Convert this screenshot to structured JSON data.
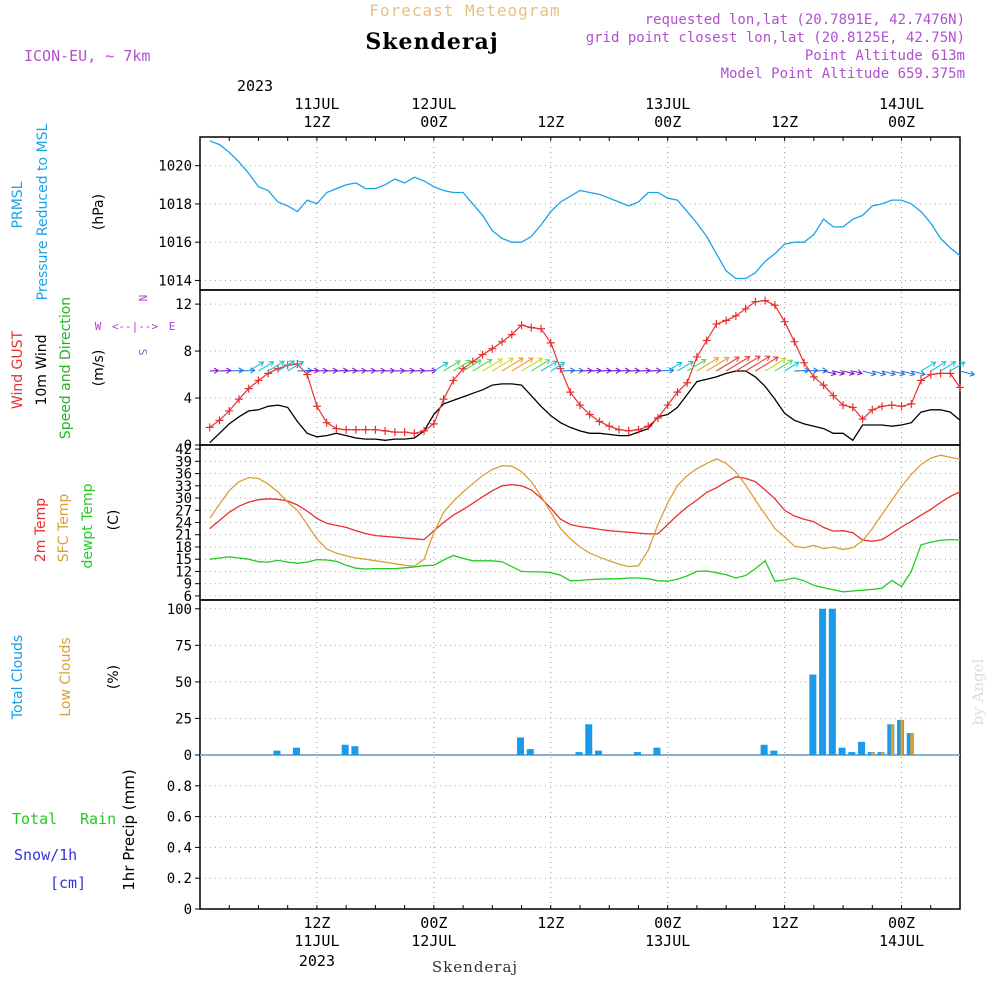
{
  "header": {
    "top_title": "Forecast Meteogram",
    "station": "Skenderaj",
    "model": "ICON-EU, ~ 7km",
    "requested": "requested lon,lat (20.7891E, 42.7476N)",
    "grid_point": "grid point closest lon,lat (20.8125E, 42.75N)",
    "point_altitude": "Point Altitude 613m",
    "model_altitude": "Model Point Altitude 659.375m"
  },
  "footer": {
    "station": "Skenderaj",
    "watermark": "by Angel"
  },
  "colors": {
    "prmsl": "#1aa3e8",
    "gust": "#e83030",
    "wind10": "#000000",
    "dir": "#22b522",
    "t2m": "#e83030",
    "sfc": "#d9a035",
    "dew": "#22cc22",
    "total_clouds": "#1a9ae8",
    "low_clouds": "#d9a035",
    "rain": "#22cc22",
    "snow": "#3333dd",
    "compass": "#b040d0",
    "header_purple": "#b050d0",
    "header_orange": "#e8c080"
  },
  "time_axis": {
    "top_labels": [
      {
        "h": 12,
        "l1": "11JUL",
        "l2": "12Z"
      },
      {
        "h": 24,
        "l1": "12JUL",
        "l2": "00Z"
      },
      {
        "h": 36,
        "l1": "",
        "l2": "12Z"
      },
      {
        "h": 48,
        "l1": "13JUL",
        "l2": "00Z"
      },
      {
        "h": 60,
        "l1": "",
        "l2": "12Z"
      },
      {
        "h": 72,
        "l1": "14JUL",
        "l2": "00Z"
      }
    ],
    "year": "2023",
    "bottom_labels": [
      {
        "h": 12,
        "l1": "12Z",
        "l2": "11JUL",
        "l3": "2023"
      },
      {
        "h": 24,
        "l1": "00Z",
        "l2": "12JUL",
        "l3": ""
      },
      {
        "h": 36,
        "l1": "12Z",
        "l2": "",
        "l3": ""
      },
      {
        "h": 48,
        "l1": "00Z",
        "l2": "13JUL",
        "l3": ""
      },
      {
        "h": 60,
        "l1": "12Z",
        "l2": "",
        "l3": ""
      },
      {
        "h": 72,
        "l1": "00Z",
        "l2": "14JUL",
        "l3": ""
      }
    ]
  },
  "panel_labels": {
    "pressure": {
      "l1": "PRMSL",
      "l2": "Pressure Reduced to MSL",
      "unit": "(hPa)"
    },
    "wind": {
      "gust": "Wind GUST",
      "w10": "10m Wind",
      "dir": "Speed and Direction",
      "unit": "(m/s)",
      "compass_w": "W",
      "compass_e": "E",
      "compass_n": "N",
      "compass_s": "S",
      "compass_h": "<--|-->"
    },
    "temp": {
      "t2m": "2m Temp",
      "sfc": "SFC Temp",
      "dew": "dewpt Temp",
      "unit": "(C)"
    },
    "clouds": {
      "total": "Total Clouds",
      "low": "Low Clouds",
      "unit": "(%)"
    },
    "precip": {
      "total": "Total",
      "rain": "Rain",
      "snow": "Snow/1h",
      "snow_unit": "[cm]",
      "axis": "1hr Precip (mm)"
    }
  },
  "chart_data": [
    {
      "type": "line",
      "title": "PRMSL Pressure Reduced to MSL",
      "ylabel": "(hPa)",
      "ylim": [
        1013.5,
        1021.5
      ],
      "yticks": [
        "1014",
        "1016",
        "1018",
        "1020"
      ],
      "x": [
        1,
        2,
        3,
        4,
        5,
        6,
        7,
        8,
        9,
        10,
        11,
        12,
        13,
        14,
        15,
        16,
        17,
        18,
        19,
        20,
        21,
        22,
        23,
        24,
        25,
        26,
        27,
        28,
        29,
        30,
        31,
        32,
        33,
        34,
        35,
        36,
        37,
        38,
        39,
        40,
        41,
        42,
        43,
        44,
        45,
        46,
        47,
        48,
        49,
        50,
        51,
        52,
        53,
        54,
        55,
        56,
        57,
        58,
        59,
        60,
        61,
        62,
        63,
        64,
        65,
        66,
        67,
        68,
        69,
        70,
        71,
        72,
        73,
        74,
        75,
        76,
        77,
        78
      ],
      "values": [
        1021.3,
        1021.1,
        1020.7,
        1020.2,
        1019.6,
        1018.9,
        1018.7,
        1018.1,
        1017.9,
        1017.6,
        1018.2,
        1018.0,
        1018.6,
        1018.8,
        1019.0,
        1019.1,
        1018.8,
        1018.8,
        1019.0,
        1019.3,
        1019.1,
        1019.4,
        1019.2,
        1018.9,
        1018.7,
        1018.6,
        1018.6,
        1018.0,
        1017.4,
        1016.6,
        1016.2,
        1016.0,
        1016.0,
        1016.3,
        1016.9,
        1017.6,
        1018.1,
        1018.4,
        1018.7,
        1018.6,
        1018.5,
        1018.3,
        1018.1,
        1017.9,
        1018.1,
        1018.6,
        1018.6,
        1018.3,
        1018.2,
        1017.6,
        1017.0,
        1016.3,
        1015.4,
        1014.5,
        1014.1,
        1014.1,
        1014.4,
        1015.0,
        1015.4,
        1015.9,
        1016.0,
        1016.0,
        1016.4,
        1017.2,
        1016.8,
        1016.8,
        1017.2,
        1017.4,
        1017.9,
        1018.0,
        1018.2,
        1018.2,
        1018.0,
        1017.6,
        1017.0,
        1016.2,
        1015.7,
        1015.3
      ]
    },
    {
      "type": "line",
      "title": "Wind GUST / 10m Wind",
      "ylabel": "(m/s)",
      "ylim": [
        0,
        13.2
      ],
      "yticks": [
        "0",
        "4",
        "8",
        "12"
      ],
      "x": [
        1,
        2,
        3,
        4,
        5,
        6,
        7,
        8,
        9,
        10,
        11,
        12,
        13,
        14,
        15,
        16,
        17,
        18,
        19,
        20,
        21,
        22,
        23,
        24,
        25,
        26,
        27,
        28,
        29,
        30,
        31,
        32,
        33,
        34,
        35,
        36,
        37,
        38,
        39,
        40,
        41,
        42,
        43,
        44,
        45,
        46,
        47,
        48,
        49,
        50,
        51,
        52,
        53,
        54,
        55,
        56,
        57,
        58,
        59,
        60,
        61,
        62,
        63,
        64,
        65,
        66,
        67,
        68,
        69,
        70,
        71,
        72,
        73,
        74,
        75,
        76,
        77,
        78
      ],
      "series": [
        {
          "name": "Wind GUST",
          "values": [
            1.5,
            2.1,
            2.9,
            3.9,
            4.8,
            5.5,
            6.1,
            6.5,
            6.8,
            6.9,
            6.0,
            3.3,
            1.9,
            1.4,
            1.3,
            1.3,
            1.3,
            1.3,
            1.2,
            1.1,
            1.1,
            1.0,
            1.2,
            1.8,
            3.9,
            5.5,
            6.5,
            7.1,
            7.7,
            8.2,
            8.8,
            9.4,
            10.2,
            10.0,
            9.9,
            8.7,
            6.5,
            4.5,
            3.4,
            2.6,
            2.0,
            1.6,
            1.3,
            1.2,
            1.3,
            1.6,
            2.3,
            3.4,
            4.5,
            5.3,
            7.5,
            8.9,
            10.3,
            10.6,
            11.0,
            11.6,
            12.2,
            12.3,
            11.9,
            10.5,
            8.8,
            7.0,
            5.8,
            5.1,
            4.2,
            3.4,
            3.2,
            2.2,
            3.0,
            3.3,
            3.4,
            3.3,
            3.5,
            5.5,
            6.0,
            6.1,
            6.1,
            4.9
          ]
        },
        {
          "name": "10m Wind",
          "values": [
            0.2,
            1.0,
            1.8,
            2.4,
            2.9,
            3.0,
            3.3,
            3.4,
            3.2,
            2.0,
            1.0,
            0.7,
            0.8,
            1.0,
            0.8,
            0.6,
            0.5,
            0.5,
            0.4,
            0.5,
            0.5,
            0.6,
            1.2,
            2.6,
            3.5,
            3.8,
            4.1,
            4.4,
            4.7,
            5.1,
            5.2,
            5.2,
            5.1,
            4.2,
            3.3,
            2.5,
            1.9,
            1.5,
            1.2,
            1.0,
            1.0,
            0.9,
            0.8,
            0.8,
            1.1,
            1.4,
            2.4,
            2.6,
            3.2,
            4.3,
            5.4,
            5.6,
            5.8,
            6.1,
            6.3,
            6.3,
            5.8,
            5.0,
            3.9,
            2.7,
            2.1,
            1.8,
            1.6,
            1.4,
            1.0,
            1.0,
            0.4,
            1.7,
            1.7,
            1.7,
            1.6,
            1.7,
            1.9,
            2.8,
            3.0,
            3.0,
            2.8,
            2.1
          ]
        }
      ],
      "direction_arrows": "per-hour wind direction arrows, colored by speed"
    },
    {
      "type": "line",
      "title": "2m Temp / SFC Temp / dewpt Temp",
      "ylabel": "(C)",
      "ylim": [
        5,
        43
      ],
      "yticks": [
        "6",
        "9",
        "12",
        "15",
        "18",
        "21",
        "24",
        "27",
        "30",
        "33",
        "36",
        "39",
        "42"
      ],
      "x": [
        1,
        2,
        3,
        4,
        5,
        6,
        7,
        8,
        9,
        10,
        11,
        12,
        13,
        14,
        15,
        16,
        17,
        18,
        19,
        20,
        21,
        22,
        23,
        24,
        25,
        26,
        27,
        28,
        29,
        30,
        31,
        32,
        33,
        34,
        35,
        36,
        37,
        38,
        39,
        40,
        41,
        42,
        43,
        44,
        45,
        46,
        47,
        48,
        49,
        50,
        51,
        52,
        53,
        54,
        55,
        56,
        57,
        58,
        59,
        60,
        61,
        62,
        63,
        64,
        65,
        66,
        67,
        68,
        69,
        70,
        71,
        72,
        73,
        74,
        75,
        76,
        77,
        78
      ],
      "series": [
        {
          "name": "2m Temp",
          "values": [
            22.5,
            24.5,
            26.5,
            28.0,
            29.0,
            29.6,
            29.8,
            29.7,
            29.3,
            28.3,
            26.8,
            25.0,
            23.8,
            23.3,
            22.8,
            22.0,
            21.3,
            20.8,
            20.6,
            20.4,
            20.2,
            20.0,
            19.8,
            22.0,
            24.0,
            25.8,
            27.2,
            28.7,
            30.3,
            31.8,
            33.0,
            33.3,
            33.0,
            32.0,
            30.0,
            27.5,
            24.8,
            23.5,
            23.0,
            22.7,
            22.3,
            22.0,
            21.8,
            21.6,
            21.4,
            21.2,
            21.2,
            23.5,
            25.8,
            27.8,
            29.5,
            31.4,
            32.5,
            34.0,
            35.2,
            34.8,
            34.0,
            32.0,
            29.8,
            27.0,
            25.6,
            24.8,
            24.2,
            22.8,
            21.9,
            22.0,
            21.5,
            19.7,
            19.4,
            19.8,
            21.3,
            22.9,
            24.3,
            25.8,
            27.2,
            28.9,
            30.4,
            31.5
          ]
        },
        {
          "name": "SFC Temp",
          "values": [
            25.0,
            28.5,
            31.8,
            34.0,
            35.0,
            34.8,
            33.4,
            31.5,
            29.0,
            27.0,
            23.5,
            20.0,
            17.5,
            16.5,
            15.8,
            15.3,
            15.0,
            14.6,
            14.3,
            13.9,
            13.5,
            13.3,
            15.0,
            21.5,
            26.5,
            29.2,
            31.5,
            33.5,
            35.5,
            37.0,
            37.9,
            37.8,
            36.5,
            34.0,
            30.5,
            26.5,
            22.5,
            20.0,
            18.0,
            16.5,
            15.5,
            14.6,
            13.8,
            13.2,
            13.4,
            17.2,
            23.5,
            28.8,
            33.0,
            35.5,
            37.2,
            38.5,
            39.6,
            38.5,
            36.4,
            33.2,
            29.5,
            26.0,
            22.5,
            20.5,
            18.2,
            17.8,
            18.4,
            17.6,
            18.0,
            17.4,
            17.8,
            19.5,
            22.5,
            26.0,
            29.5,
            32.8,
            35.8,
            38.2,
            39.8,
            40.5,
            40.0,
            39.5
          ]
        },
        {
          "name": "dewpt Temp",
          "values": [
            15.0,
            15.3,
            15.6,
            15.3,
            15.0,
            14.4,
            14.3,
            14.7,
            14.3,
            14.0,
            14.3,
            14.9,
            14.8,
            14.5,
            13.5,
            12.8,
            12.6,
            12.7,
            12.7,
            12.7,
            12.9,
            13.1,
            13.4,
            13.5,
            14.8,
            15.9,
            15.2,
            14.6,
            14.6,
            14.6,
            14.4,
            13.2,
            12.0,
            11.9,
            11.9,
            11.7,
            11.1,
            9.7,
            9.8,
            10.0,
            10.1,
            10.2,
            10.2,
            10.4,
            10.4,
            10.2,
            9.7,
            9.6,
            10.1,
            10.9,
            12.0,
            12.1,
            11.7,
            11.2,
            10.4,
            11.0,
            12.7,
            14.6,
            9.6,
            9.9,
            10.4,
            9.7,
            8.6,
            8.0,
            7.5,
            7.0,
            7.2,
            7.4,
            7.6,
            7.9,
            9.8,
            8.3,
            12.0,
            18.5,
            19.2,
            19.6,
            19.8,
            19.7
          ]
        }
      ]
    },
    {
      "type": "bar",
      "title": "Total Clouds / Low Clouds",
      "ylabel": "(%)",
      "ylim": [
        0,
        106
      ],
      "yticks": [
        "0",
        "25",
        "50",
        "75",
        "100"
      ],
      "x": [
        1,
        2,
        3,
        4,
        5,
        6,
        7,
        8,
        9,
        10,
        11,
        12,
        13,
        14,
        15,
        16,
        17,
        18,
        19,
        20,
        21,
        22,
        23,
        24,
        25,
        26,
        27,
        28,
        29,
        30,
        31,
        32,
        33,
        34,
        35,
        36,
        37,
        38,
        39,
        40,
        41,
        42,
        43,
        44,
        45,
        46,
        47,
        48,
        49,
        50,
        51,
        52,
        53,
        54,
        55,
        56,
        57,
        58,
        59,
        60,
        61,
        62,
        63,
        64,
        65,
        66,
        67,
        68,
        69,
        70,
        71,
        72,
        73,
        74,
        75,
        76,
        77,
        78
      ],
      "series": [
        {
          "name": "Total Clouds",
          "values": [
            0,
            0,
            0,
            0,
            0,
            0,
            0,
            3,
            0,
            5,
            0,
            0,
            0,
            0,
            7,
            6,
            0,
            0,
            0,
            0,
            0,
            0,
            0,
            0,
            0,
            0,
            0,
            0,
            0,
            0,
            0,
            0,
            12,
            4,
            0,
            0,
            0,
            0,
            2,
            21,
            3,
            0,
            0,
            0,
            2,
            0,
            5,
            0,
            0,
            0,
            0,
            0,
            0,
            0,
            0,
            0,
            0,
            7,
            3,
            0,
            0,
            0,
            55,
            100,
            100,
            5,
            2,
            9,
            2,
            2,
            21,
            24,
            15,
            0,
            0,
            0,
            0,
            0
          ]
        },
        {
          "name": "Low Clouds",
          "values": [
            0,
            0,
            0,
            0,
            0,
            0,
            0,
            0,
            0,
            0,
            0,
            0,
            0,
            0,
            0,
            0,
            0,
            0,
            0,
            0,
            0,
            0,
            0,
            0,
            0,
            0,
            0,
            0,
            0,
            0,
            0,
            0,
            0,
            0,
            0,
            0,
            0,
            0,
            0,
            0,
            0,
            0,
            0,
            0,
            0,
            0,
            0,
            0,
            0,
            0,
            0,
            0,
            0,
            0,
            0,
            0,
            0,
            0,
            0,
            0,
            0,
            0,
            0,
            0,
            0,
            0,
            0,
            0,
            2,
            2,
            21,
            24,
            15,
            0,
            0,
            0,
            0,
            0
          ]
        }
      ]
    },
    {
      "type": "bar",
      "title": "1hr Precip (mm)",
      "ylabel": "1hr Precip (mm)",
      "ylim": [
        0,
        1.0
      ],
      "yticks": [
        "0",
        "0.2",
        "0.4",
        "0.6",
        "0.8"
      ],
      "series": [
        {
          "name": "Total Rain",
          "values": []
        },
        {
          "name": "Snow/1h",
          "values": []
        }
      ]
    }
  ]
}
